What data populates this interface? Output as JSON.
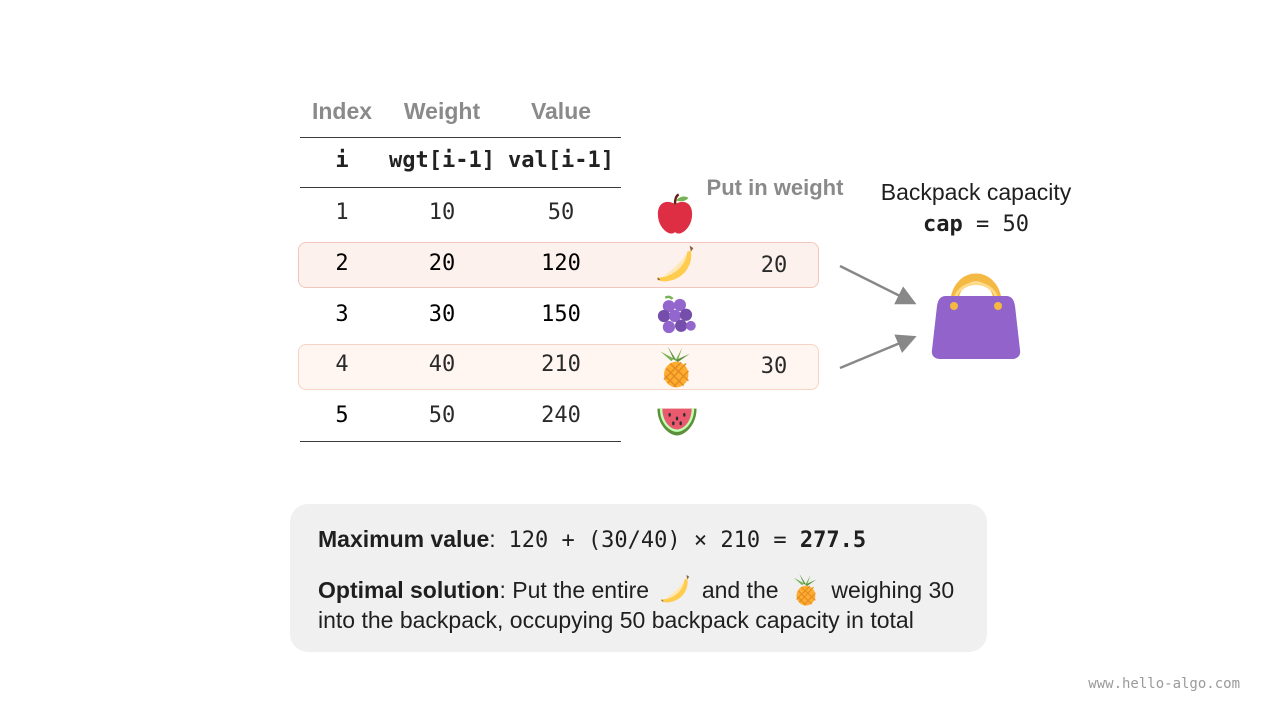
{
  "table": {
    "headers": [
      "Index",
      "Weight",
      "Value"
    ],
    "subheaders": [
      "i",
      "wgt[i-1]",
      "val[i-1]"
    ],
    "put_in_title": "Put in weight",
    "rows": [
      {
        "index": "1",
        "weight": "10",
        "value": "50",
        "fruit": "apple-icon",
        "put": ""
      },
      {
        "index": "2",
        "weight": "20",
        "value": "120",
        "fruit": "banana-icon",
        "put": "20"
      },
      {
        "index": "3",
        "weight": "30",
        "value": "150",
        "fruit": "grapes-icon",
        "put": ""
      },
      {
        "index": "4",
        "weight": "40",
        "value": "210",
        "fruit": "pineapple-icon",
        "put": "30"
      },
      {
        "index": "5",
        "weight": "50",
        "value": "240",
        "fruit": "watermelon-icon",
        "put": ""
      }
    ]
  },
  "backpack": {
    "title": "Backpack capacity",
    "cap_keyword": "cap",
    "cap_equals": " = 50",
    "icon": "handbag-icon",
    "bag_color": "#9163cb"
  },
  "summary": {
    "max_label": "Maximum value",
    "max_colon": ":",
    "max_expr": "120 + (30/40) × 210 = ",
    "max_result": "277.5",
    "opt_label": "Optimal solution",
    "opt_text_1": ": Put the entire",
    "opt_text_2": "and the",
    "opt_text_3": "weighing 30 into the backpack, occupying 50 backpack capacity in total"
  },
  "watermark": "www.hello-algo.com"
}
